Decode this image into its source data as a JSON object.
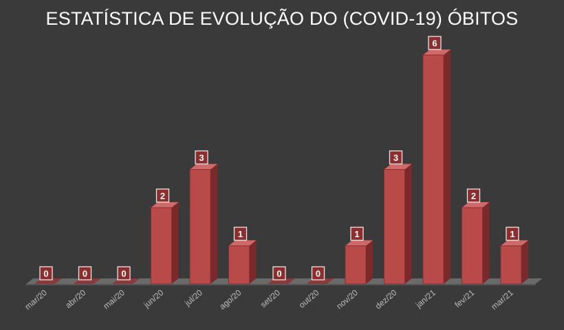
{
  "chart_data": {
    "type": "bar",
    "title": "ESTATÍSTICA DE EVOLUÇÃO DO (COVID-19) ÓBITOS",
    "categories": [
      "mar/20",
      "abr/20",
      "mai/20",
      "jun/20",
      "jul/20",
      "ago/20",
      "set/20",
      "out/20",
      "nov/20",
      "dez/20",
      "jan/21",
      "fev/21",
      "mar/21"
    ],
    "values": [
      0,
      0,
      0,
      2,
      3,
      1,
      0,
      0,
      1,
      3,
      6,
      2,
      1
    ],
    "ylim": [
      0,
      6
    ],
    "grid": false,
    "legend": "none",
    "style": "3d-column",
    "data_labels": true
  },
  "colors": {
    "background": "#3a3a3a",
    "bar_front": "#b84a4a",
    "bar_side": "#7a2a2a",
    "bar_top": "#d06a6a",
    "floor": "#6a6a6a",
    "label_box": "#8e2d2d",
    "label_border": "#e8e8e8"
  }
}
